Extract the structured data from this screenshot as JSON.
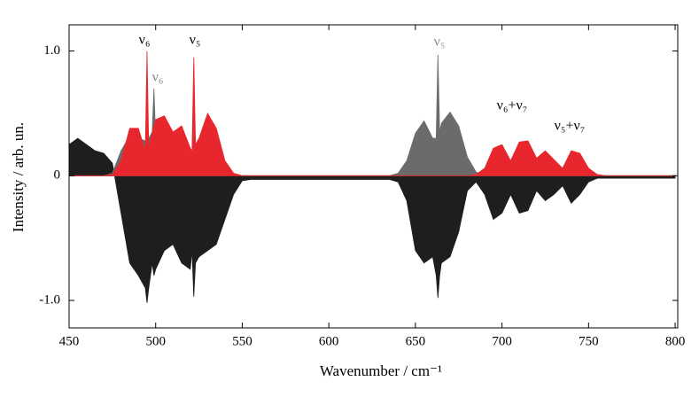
{
  "chart_data": {
    "type": "area",
    "xlabel": "Wavenumber / cm⁻¹",
    "ylabel": "Intensity / arb. un.",
    "xlim": [
      450,
      801.5
    ],
    "ylim": [
      -1.22,
      1.21
    ],
    "xticks": [
      450,
      500,
      550,
      600,
      650,
      700,
      750,
      800
    ],
    "yticks": [
      {
        "value": 1,
        "label": "1.0"
      },
      0,
      {
        "value": -1,
        "label": "-1.0"
      }
    ],
    "x": [
      450,
      455,
      460,
      465,
      470,
      475,
      480,
      485,
      490,
      494,
      495,
      496,
      498,
      499,
      500,
      505,
      510,
      515,
      520,
      521,
      522,
      523,
      525,
      530,
      535,
      540,
      545,
      550,
      555,
      560,
      565,
      570,
      575,
      580,
      585,
      590,
      595,
      600,
      605,
      610,
      615,
      620,
      625,
      630,
      635,
      640,
      645,
      650,
      655,
      660,
      662,
      663,
      664,
      665,
      670,
      675,
      680,
      685,
      690,
      695,
      700,
      705,
      710,
      715,
      720,
      725,
      730,
      735,
      740,
      745,
      750,
      755,
      760,
      765,
      770,
      775,
      780,
      785,
      790,
      795,
      800
    ],
    "series": [
      {
        "color": "#1e1e1e",
        "values": [
          0.25,
          0.3,
          0.25,
          0.2,
          0.18,
          0.1,
          -0.3,
          -0.7,
          -0.8,
          -0.9,
          -1.02,
          -0.9,
          -0.7,
          -0.8,
          -0.75,
          -0.6,
          -0.55,
          -0.7,
          -0.75,
          -0.6,
          -0.97,
          -0.7,
          -0.65,
          -0.6,
          -0.55,
          -0.35,
          -0.15,
          -0.04,
          -0.03,
          -0.03,
          -0.03,
          -0.03,
          -0.03,
          -0.03,
          -0.03,
          -0.03,
          -0.03,
          -0.03,
          -0.03,
          -0.03,
          -0.03,
          -0.03,
          -0.03,
          -0.03,
          -0.03,
          -0.05,
          -0.2,
          -0.6,
          -0.7,
          -0.65,
          -0.8,
          -0.98,
          -0.8,
          -0.7,
          -0.65,
          -0.45,
          -0.12,
          -0.05,
          -0.15,
          -0.35,
          -0.3,
          -0.15,
          -0.3,
          -0.28,
          -0.12,
          -0.2,
          -0.15,
          -0.08,
          -0.22,
          -0.15,
          -0.05,
          -0.02,
          -0.02,
          -0.02,
          -0.02,
          -0.02,
          -0.02,
          -0.02,
          -0.02,
          -0.02,
          -0.02
        ]
      },
      {
        "color": "#6b6b6b",
        "values": [
          0,
          0,
          0,
          0,
          0,
          0.02,
          0.2,
          0.32,
          0.3,
          0.28,
          0.3,
          0.3,
          0.35,
          0.7,
          0.3,
          0.2,
          0.15,
          0.12,
          0.05,
          0.03,
          0.02,
          0.02,
          0.01,
          0,
          0,
          0,
          0,
          0,
          0,
          0,
          0,
          0,
          0,
          0,
          0,
          0,
          0,
          0,
          0,
          0,
          0,
          0,
          0,
          0,
          0,
          0.02,
          0.12,
          0.34,
          0.44,
          0.3,
          0.3,
          0.97,
          0.35,
          0.42,
          0.51,
          0.4,
          0.15,
          0.03,
          0,
          0,
          0,
          0,
          0,
          0,
          0,
          0,
          0,
          0,
          0,
          0,
          0,
          0,
          0,
          0,
          0,
          0,
          0,
          0,
          0,
          0,
          0
        ]
      },
      {
        "color": "#e8262d",
        "values": [
          0,
          0,
          0,
          0,
          0,
          0.01,
          0.12,
          0.38,
          0.38,
          0.2,
          1.0,
          0.22,
          0.35,
          0.4,
          0.45,
          0.48,
          0.35,
          0.4,
          0.22,
          0.2,
          0.95,
          0.25,
          0.3,
          0.5,
          0.38,
          0.12,
          0.02,
          0,
          0,
          0,
          0,
          0,
          0,
          0,
          0,
          0,
          0,
          0,
          0,
          0,
          0,
          0,
          0,
          0,
          0,
          0,
          0,
          0,
          0,
          0,
          0,
          0,
          0,
          0,
          0,
          0,
          0,
          0.01,
          0.06,
          0.22,
          0.25,
          0.12,
          0.27,
          0.28,
          0.14,
          0.2,
          0.13,
          0.06,
          0.2,
          0.18,
          0.06,
          0.01,
          0,
          0,
          0,
          0,
          0,
          0,
          0,
          0,
          0
        ]
      }
    ],
    "annotations": [
      {
        "text": "ν₆",
        "color": "#000000"
      },
      {
        "text": "ν₅",
        "color": "#000000"
      },
      {
        "text": "ν₆",
        "color": "#888888"
      },
      {
        "text": "ν₅",
        "color": "#888888"
      },
      {
        "text": "ν₆+ν₇",
        "color": "#000000"
      },
      {
        "text": "ν₅+ν₇",
        "color": "#000000"
      }
    ]
  }
}
